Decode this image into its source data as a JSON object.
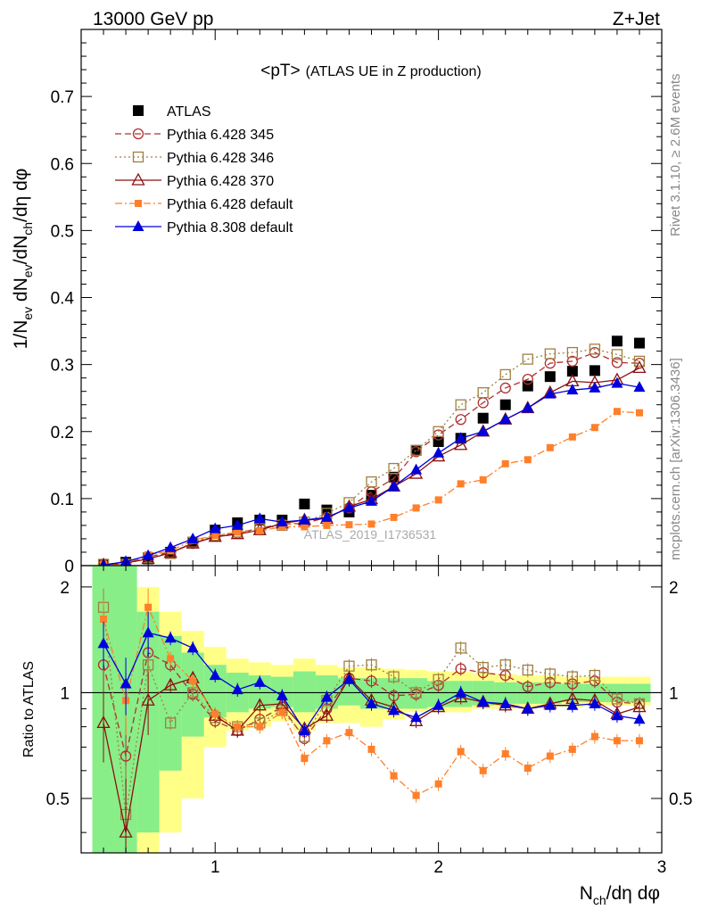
{
  "header": {
    "left": "13000 GeV pp",
    "right": "Z+Jet"
  },
  "side_labels": {
    "rivet": "Rivet 3.1.10, ≥ 2.6M events",
    "mcplots": "mcplots.cern.ch [arXiv:1306.3436]"
  },
  "chart_data": [
    {
      "type": "line",
      "title": "<pT> (ATLAS UE in Z production)",
      "title_main": "<pT>",
      "title_sub": "(ATLAS UE in Z production)",
      "ylabel": "1/N_ev dN_ev/dN_ch/dη dφ",
      "ylabel_parts": {
        "a": "1/N",
        "b": "ev",
        "c": " dN",
        "d": "ev",
        "e": "/dN",
        "f": "ch",
        "g": "/dη dφ"
      },
      "ylim": [
        0,
        0.8
      ],
      "xlim": [
        0.4,
        3.0
      ],
      "yticks": [
        "0",
        "0.1",
        "0.2",
        "0.3",
        "0.4",
        "0.5",
        "0.6",
        "0.7"
      ],
      "watermark": "ATLAS_2019_I1736531",
      "legend_position": "top-left",
      "x": [
        0.5,
        0.6,
        0.7,
        0.8,
        0.9,
        1.0,
        1.1,
        1.2,
        1.3,
        1.4,
        1.5,
        1.6,
        1.7,
        1.8,
        1.9,
        2.0,
        2.1,
        2.2,
        2.3,
        2.4,
        2.5,
        2.6,
        2.7,
        2.8,
        2.9
      ],
      "series": [
        {
          "name": "ATLAS",
          "color": "#000000",
          "marker": "square-filled",
          "line": "none",
          "values": [
            0.001,
            0.005,
            0.01,
            0.02,
            0.035,
            0.053,
            0.064,
            0.068,
            0.068,
            0.092,
            0.083,
            0.08,
            0.105,
            0.132,
            0.172,
            0.185,
            0.19,
            0.22,
            0.24,
            0.268,
            0.282,
            0.29,
            0.291,
            0.335,
            0.332
          ]
        },
        {
          "name": "Pythia 6.428 345",
          "color": "#b03030",
          "marker": "circle-open",
          "line": "dashed",
          "values": [
            0.001,
            0.003,
            0.013,
            0.02,
            0.033,
            0.044,
            0.048,
            0.056,
            0.062,
            0.063,
            0.072,
            0.086,
            0.11,
            0.13,
            0.17,
            0.195,
            0.218,
            0.243,
            0.265,
            0.278,
            0.302,
            0.305,
            0.318,
            0.303,
            0.302
          ]
        },
        {
          "name": "Pythia 6.428 346",
          "color": "#a08040",
          "marker": "square-open",
          "line": "dotted",
          "values": [
            0.002,
            0.002,
            0.012,
            0.018,
            0.035,
            0.045,
            0.05,
            0.055,
            0.06,
            0.065,
            0.078,
            0.094,
            0.125,
            0.145,
            0.172,
            0.2,
            0.24,
            0.258,
            0.285,
            0.308,
            0.316,
            0.318,
            0.323,
            0.315,
            0.305
          ]
        },
        {
          "name": "Pythia 6.428 370",
          "color": "#8b1010",
          "marker": "triangle-open",
          "line": "solid",
          "values": [
            0.001,
            0.004,
            0.01,
            0.019,
            0.033,
            0.043,
            0.047,
            0.053,
            0.063,
            0.068,
            0.07,
            0.088,
            0.099,
            0.118,
            0.137,
            0.163,
            0.18,
            0.2,
            0.218,
            0.235,
            0.258,
            0.275,
            0.273,
            0.277,
            0.295
          ]
        },
        {
          "name": "Pythia 6.428 default",
          "color": "#ff7f2a",
          "marker": "square-small-filled",
          "line": "dashdot",
          "values": [
            0.002,
            0.004,
            0.016,
            0.022,
            0.038,
            0.045,
            0.05,
            0.052,
            0.058,
            0.058,
            0.06,
            0.061,
            0.062,
            0.072,
            0.086,
            0.098,
            0.122,
            0.128,
            0.152,
            0.158,
            0.176,
            0.192,
            0.206,
            0.23,
            0.228
          ]
        },
        {
          "name": "Pythia 8.308 default",
          "color": "#0000dd",
          "marker": "triangle-filled",
          "line": "solid",
          "values": [
            0.001,
            0.006,
            0.015,
            0.027,
            0.04,
            0.055,
            0.06,
            0.07,
            0.065,
            0.068,
            0.072,
            0.086,
            0.096,
            0.118,
            0.143,
            0.168,
            0.19,
            0.2,
            0.218,
            0.235,
            0.256,
            0.262,
            0.265,
            0.272,
            0.266
          ]
        }
      ]
    },
    {
      "type": "line",
      "ylabel": "Ratio to ATLAS",
      "ylim": [
        0.35,
        2.3
      ],
      "xlim": [
        0.4,
        3.0
      ],
      "yticks": [
        "0.5",
        "1",
        "2"
      ],
      "xticks": [
        "1",
        "2",
        "3"
      ],
      "xlabel": "N_ch/dη dφ",
      "xlabel_parts": {
        "a": "N",
        "b": "ch",
        "c": "/dη dφ"
      },
      "uncertainty_bands": {
        "x_edges": [
          0.45,
          0.55,
          0.65,
          0.75,
          0.85,
          0.95,
          1.05,
          1.15,
          1.25,
          1.35,
          1.45,
          1.55,
          1.65,
          1.75,
          1.85,
          1.95,
          2.05,
          2.15,
          2.25,
          2.35,
          2.45,
          2.55,
          2.65,
          2.75,
          2.85,
          2.95
        ],
        "stat_low": [
          0.35,
          0.35,
          0.4,
          0.6,
          0.75,
          0.85,
          0.88,
          0.9,
          0.91,
          0.88,
          0.9,
          0.92,
          0.9,
          0.9,
          0.9,
          0.91,
          0.91,
          0.92,
          0.93,
          0.93,
          0.93,
          0.94,
          0.94,
          0.94,
          0.94
        ],
        "stat_high": [
          2.3,
          2.3,
          1.7,
          1.45,
          1.3,
          1.2,
          1.14,
          1.12,
          1.11,
          1.15,
          1.12,
          1.1,
          1.1,
          1.1,
          1.1,
          1.08,
          1.08,
          1.08,
          1.07,
          1.07,
          1.07,
          1.06,
          1.06,
          1.06,
          1.06
        ],
        "syst_low": [
          0.35,
          0.35,
          0.35,
          0.4,
          0.5,
          0.7,
          0.78,
          0.8,
          0.83,
          0.78,
          0.82,
          0.82,
          0.8,
          0.84,
          0.88,
          0.88,
          0.88,
          0.9,
          0.9,
          0.91,
          0.91,
          0.91,
          0.92,
          0.92,
          0.92
        ],
        "syst_high": [
          2.3,
          2.3,
          2.0,
          1.7,
          1.5,
          1.35,
          1.25,
          1.22,
          1.2,
          1.25,
          1.2,
          1.18,
          1.18,
          1.17,
          1.16,
          1.15,
          1.15,
          1.14,
          1.13,
          1.12,
          1.12,
          1.11,
          1.11,
          1.11,
          1.11
        ],
        "stat_color": "#88ee88",
        "syst_color": "#ffff88"
      },
      "series": [
        {
          "name": "Pythia 6.428 345",
          "values": [
            1.2,
            0.66,
            1.3,
            1.2,
            0.99,
            0.83,
            0.78,
            0.84,
            0.91,
            0.74,
            0.9,
            1.1,
            1.08,
            0.98,
            0.99,
            1.05,
            1.17,
            1.14,
            1.12,
            1.04,
            1.07,
            1.06,
            1.08,
            0.94,
            0.93
          ]
        },
        {
          "name": "Pythia 6.428 346",
          "values": [
            1.75,
            0.45,
            1.2,
            0.82,
            1.0,
            0.85,
            0.8,
            0.82,
            0.89,
            0.75,
            0.95,
            1.19,
            1.2,
            1.11,
            1.0,
            1.09,
            1.34,
            1.18,
            1.2,
            1.16,
            1.13,
            1.11,
            1.12,
            0.96,
            0.93
          ]
        },
        {
          "name": "Pythia 6.428 370",
          "values": [
            0.82,
            0.4,
            0.95,
            1.05,
            1.1,
            0.86,
            0.78,
            0.92,
            0.93,
            0.79,
            0.86,
            1.1,
            0.95,
            0.91,
            0.83,
            0.91,
            0.97,
            0.94,
            0.92,
            0.9,
            0.93,
            0.96,
            0.95,
            0.87,
            0.91
          ]
        },
        {
          "name": "Pythia 6.428 default",
          "values": [
            1.62,
            0.95,
            1.75,
            1.25,
            1.08,
            0.87,
            0.8,
            0.8,
            0.88,
            0.65,
            0.73,
            0.77,
            0.69,
            0.58,
            0.51,
            0.55,
            0.68,
            0.6,
            0.67,
            0.61,
            0.66,
            0.69,
            0.75,
            0.73,
            0.73
          ]
        },
        {
          "name": "Pythia 8.308 default",
          "values": [
            1.38,
            1.06,
            1.48,
            1.43,
            1.34,
            1.12,
            1.02,
            1.07,
            0.98,
            0.78,
            0.97,
            1.09,
            0.93,
            0.89,
            0.85,
            0.92,
            1.0,
            0.94,
            0.93,
            0.9,
            0.92,
            0.92,
            0.93,
            0.86,
            0.84
          ]
        }
      ]
    }
  ]
}
